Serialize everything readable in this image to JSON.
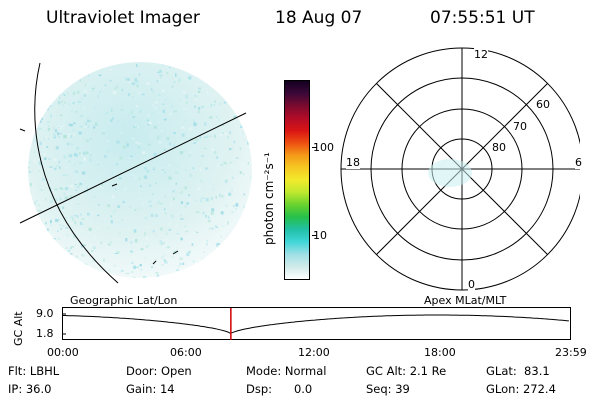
{
  "header": {
    "title": "Ultraviolet Imager",
    "date": "18 Aug 07",
    "time": "07:55:51 UT"
  },
  "colorbar": {
    "unit_label": "photon cm⁻²s⁻¹",
    "tick_labels": [
      "100",
      "10"
    ],
    "colors": [
      "#ffffff",
      "#d0eaea",
      "#9ee0e6",
      "#40d6d8",
      "#22c0a6",
      "#26c04a",
      "#6ad22e",
      "#bee82e",
      "#f2ea2c",
      "#f6c822",
      "#f49a18",
      "#ee4e12",
      "#d81414",
      "#b20c28",
      "#7a0a2e",
      "#3a0838",
      "#140020"
    ]
  },
  "polar_plot": {
    "labels": {
      "top": "12",
      "bottom": "0",
      "left": "18",
      "right": "6"
    },
    "lat_labels": [
      "60",
      "70",
      "80"
    ]
  },
  "timeline": {
    "left_title": "Geographic Lat/Lon",
    "right_title": "Apex MLat/MLT",
    "y_label": "GC Alt",
    "y_ticks": [
      "9.0",
      "1.8"
    ],
    "x_ticks": [
      "00:00",
      "06:00",
      "12:00",
      "18:00",
      "23:59"
    ],
    "cursor_hours": 7.93,
    "cursor_color": "#d00000"
  },
  "info": {
    "col1": [
      "Flt: LBHL",
      "IP: 36.0"
    ],
    "col2": [
      "Door: Open",
      "Gain: 14"
    ],
    "col3": [
      "Mode: Normal",
      "Dsp:      0.0"
    ],
    "col4": [
      "GC Alt: 2.1 Re",
      "Seq: 39"
    ],
    "col5": [
      "GLat:  83.1",
      "GLon: 272.4"
    ]
  }
}
